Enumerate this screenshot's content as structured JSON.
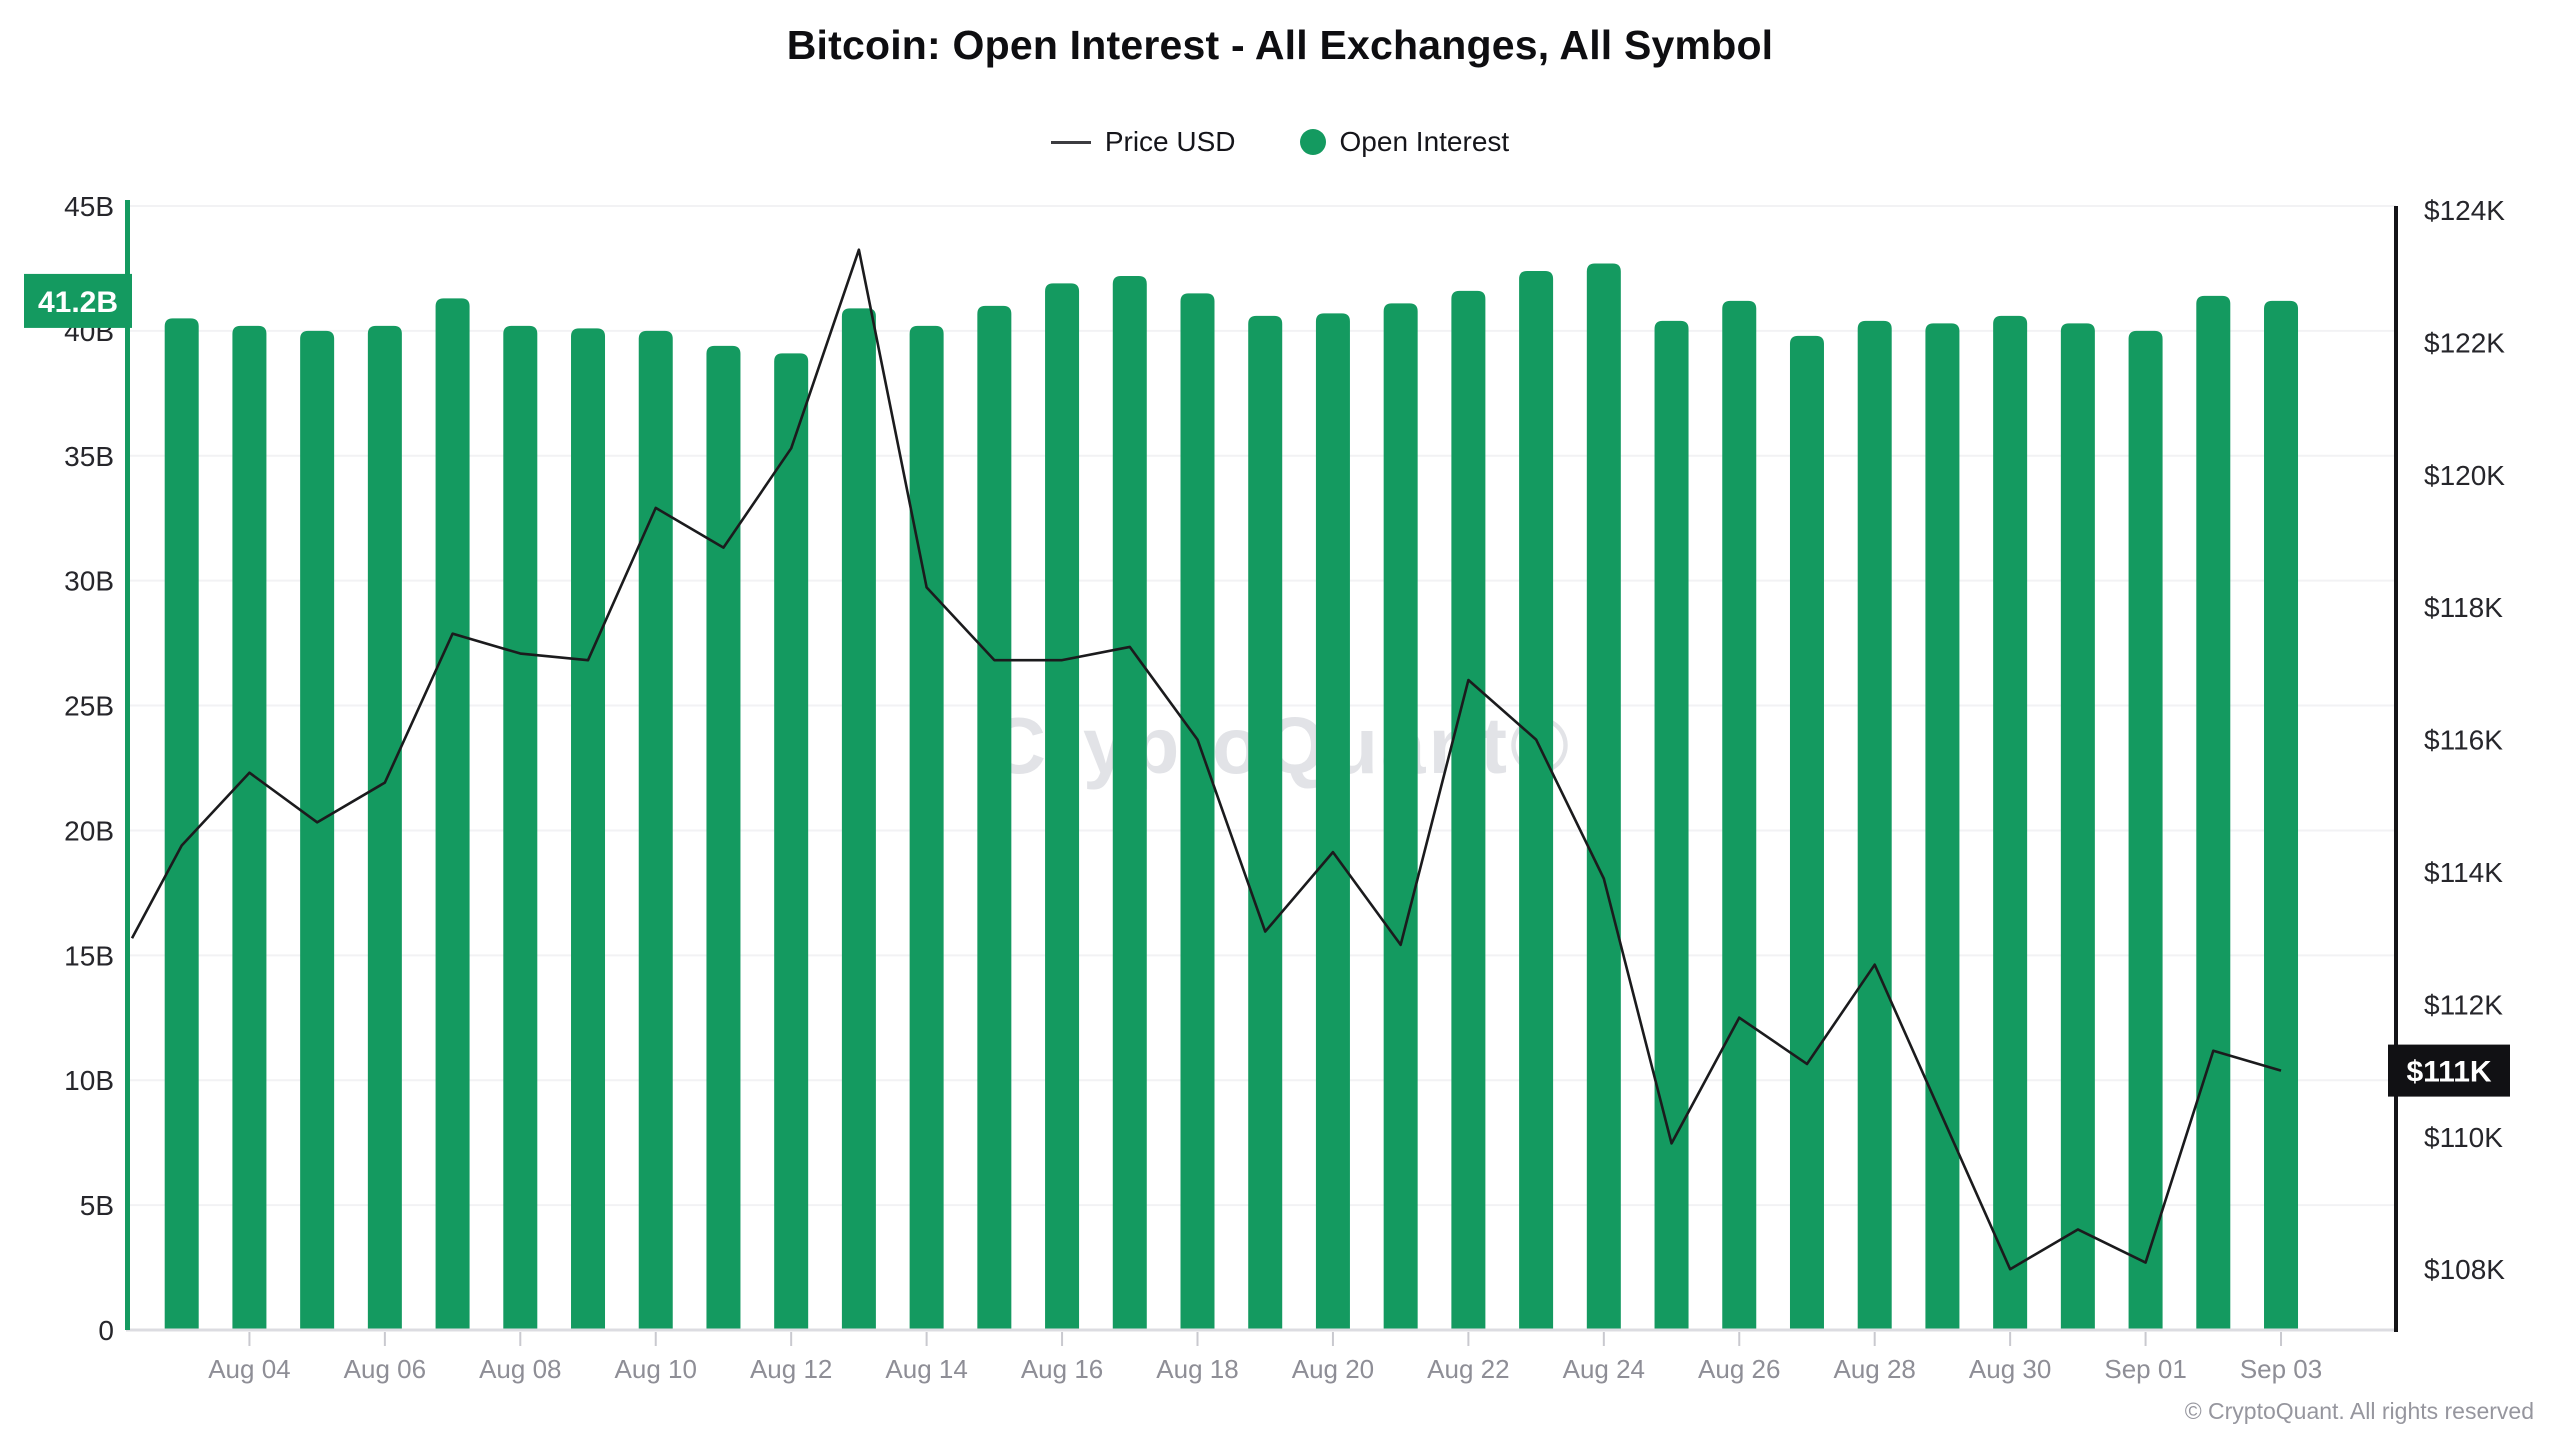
{
  "header": {
    "title": "Bitcoin: Open Interest - All Exchanges, All Symbol",
    "legend": [
      {
        "label": "Price USD",
        "swatch": "line-swatch"
      },
      {
        "label": "Open Interest",
        "swatch": "dot-swatch"
      }
    ]
  },
  "watermark": "CryptoQuant®",
  "footer": {
    "copyright": "© CryptoQuant. All rights reserved"
  },
  "badges": {
    "open_interest_label": "41.2B",
    "open_interest_value": 41.2,
    "price_label": "$111K",
    "price_value": 111.0
  },
  "chart_data": {
    "type": "bar+line combo",
    "title": "Bitcoin: Open Interest - All Exchanges, All Symbol",
    "grid": "horizontal",
    "legend_position": "top-center",
    "categories": [
      "Aug 03",
      "Aug 04",
      "Aug 05",
      "Aug 06",
      "Aug 07",
      "Aug 08",
      "Aug 09",
      "Aug 10",
      "Aug 11",
      "Aug 12",
      "Aug 13",
      "Aug 14",
      "Aug 15",
      "Aug 16",
      "Aug 17",
      "Aug 18",
      "Aug 19",
      "Aug 20",
      "Aug 21",
      "Aug 22",
      "Aug 23",
      "Aug 24",
      "Aug 25",
      "Aug 26",
      "Aug 27",
      "Aug 28",
      "Aug 29",
      "Aug 30",
      "Aug 31",
      "Sep 01",
      "Sep 02",
      "Sep 03"
    ],
    "x_tick_labels": [
      "Aug 04",
      "Aug 06",
      "Aug 08",
      "Aug 10",
      "Aug 12",
      "Aug 14",
      "Aug 16",
      "Aug 18",
      "Aug 20",
      "Aug 22",
      "Aug 24",
      "Aug 26",
      "Aug 28",
      "Aug 30",
      "Sep 01",
      "Sep 03"
    ],
    "series": [
      {
        "name": "Open Interest",
        "type": "bar",
        "axis": "left",
        "unit": "billion USD",
        "color": "#149a60",
        "values": [
          40.5,
          40.2,
          40.0,
          40.2,
          41.3,
          40.2,
          40.1,
          40.0,
          39.4,
          39.1,
          40.9,
          40.2,
          41.0,
          41.9,
          42.2,
          41.5,
          40.6,
          40.7,
          41.1,
          41.6,
          42.4,
          42.7,
          40.4,
          41.2,
          39.8,
          40.4,
          40.3,
          40.6,
          40.3,
          40.0,
          41.4,
          41.2
        ]
      },
      {
        "name": "Price USD",
        "type": "line",
        "axis": "right",
        "unit": "thousand USD",
        "color": "#1b1b1d",
        "edge_start_value": 113.0,
        "values": [
          114.4,
          115.5,
          114.75,
          115.35,
          117.6,
          117.3,
          117.2,
          119.5,
          118.9,
          120.4,
          123.4,
          118.3,
          117.2,
          117.2,
          117.4,
          116.0,
          113.1,
          114.3,
          112.9,
          116.9,
          116.0,
          113.9,
          109.9,
          111.8,
          111.1,
          112.6,
          110.3,
          108.0,
          108.6,
          108.1,
          111.3,
          111.0
        ]
      }
    ],
    "left_axis": {
      "title": "Open Interest",
      "tick_labels": [
        "0",
        "5B",
        "10B",
        "15B",
        "20B",
        "25B",
        "30B",
        "35B",
        "40B",
        "45B"
      ],
      "tick_values": [
        0,
        5,
        10,
        15,
        20,
        25,
        30,
        35,
        40,
        45
      ],
      "range": [
        0,
        45
      ],
      "current_badge": "41.2B"
    },
    "right_axis": {
      "title": "Price USD",
      "tick_labels": [
        "$108K",
        "$110K",
        "$112K",
        "$114K",
        "$116K",
        "$118K",
        "$120K",
        "$122K",
        "$124K"
      ],
      "tick_values": [
        108,
        110,
        112,
        114,
        116,
        118,
        120,
        122,
        124
      ],
      "labeled_range": [
        108,
        124
      ],
      "current_badge": "$111K"
    }
  }
}
